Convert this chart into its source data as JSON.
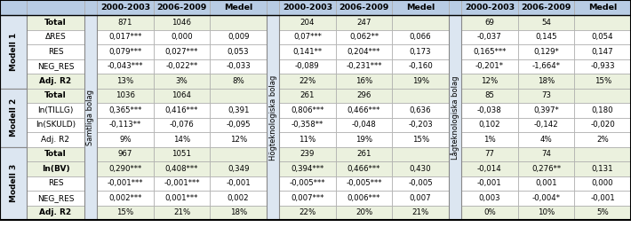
{
  "col_headers": [
    "2000-2003",
    "2006-2009",
    "Medel"
  ],
  "vert_label1": "Samtliga bolag",
  "vert_label2": "Högteknologiska bolag",
  "vert_label3": "Lågteknologiska bolag",
  "row_labels": [
    "Total",
    "ΔRES",
    "RES",
    "NEG_RES",
    "Adj. R2",
    "Total",
    "In(TILLG)",
    "In(SKULD)",
    "Adj. R2",
    "Total",
    "In(BV)",
    "RES",
    "NEG_RES",
    "Adj. R2"
  ],
  "data_samtliga": [
    [
      "871",
      "1046",
      ""
    ],
    [
      "0,017***",
      "0,000",
      "0,009"
    ],
    [
      "0,079***",
      "0,027***",
      "0,053"
    ],
    [
      "-0,043***",
      "-0,022**",
      "-0,033"
    ],
    [
      "13%",
      "3%",
      "8%"
    ],
    [
      "1036",
      "1064",
      ""
    ],
    [
      "0,365***",
      "0,416***",
      "0,391"
    ],
    [
      "-0,113**",
      "-0,076",
      "-0,095"
    ],
    [
      "9%",
      "14%",
      "12%"
    ],
    [
      "967",
      "1051",
      ""
    ],
    [
      "0,290***",
      "0,408***",
      "0,349"
    ],
    [
      "-0,001***",
      "-0,001***",
      "-0,001"
    ],
    [
      "0,002***",
      "0,001***",
      "0,002"
    ],
    [
      "15%",
      "21%",
      "18%"
    ]
  ],
  "data_hogtek": [
    [
      "204",
      "247",
      ""
    ],
    [
      "0,07***",
      "0,062**",
      "0,066"
    ],
    [
      "0,141**",
      "0,204***",
      "0,173"
    ],
    [
      "-0,089",
      "-0,231***",
      "-0,160"
    ],
    [
      "22%",
      "16%",
      "19%"
    ],
    [
      "261",
      "296",
      ""
    ],
    [
      "0,806***",
      "0,466***",
      "0,636"
    ],
    [
      "-0,358**",
      "-0,048",
      "-0,203"
    ],
    [
      "11%",
      "19%",
      "15%"
    ],
    [
      "239",
      "261",
      ""
    ],
    [
      "0,394***",
      "0,466***",
      "0,430"
    ],
    [
      "-0,005***",
      "-0,005***",
      "-0,005"
    ],
    [
      "0,007***",
      "0,006***",
      "0,007"
    ],
    [
      "22%",
      "20%",
      "21%"
    ]
  ],
  "data_lagtek": [
    [
      "69",
      "54",
      ""
    ],
    [
      "-0,037",
      "0,145",
      "0,054"
    ],
    [
      "0,165***",
      "0,129*",
      "0,147"
    ],
    [
      "-0,201*",
      "-1,664*",
      "-0,933"
    ],
    [
      "12%",
      "18%",
      "15%"
    ],
    [
      "85",
      "73",
      ""
    ],
    [
      "-0,038",
      "0,397*",
      "0,180"
    ],
    [
      "0,102",
      "-0,142",
      "-0,020"
    ],
    [
      "1%",
      "4%",
      "2%"
    ],
    [
      "77",
      "74",
      ""
    ],
    [
      "-0,014",
      "0,276**",
      "0,131"
    ],
    [
      "-0,001",
      "0,001",
      "0,000"
    ],
    [
      "0,003",
      "-0,004*",
      "-0,001"
    ],
    [
      "0%",
      "10%",
      "5%"
    ]
  ],
  "color_header_blue": "#b8cce4",
  "color_header_blue2": "#c5d9f1",
  "color_green": "#ebf1de",
  "color_white": "#ffffff",
  "color_modell_blue": "#dce6f1",
  "color_sep_col": "#dce6f1",
  "modell_ranges": [
    [
      0,
      5,
      "Modell 1"
    ],
    [
      5,
      9,
      "Modell 2"
    ],
    [
      9,
      14,
      "Modell 3"
    ]
  ]
}
